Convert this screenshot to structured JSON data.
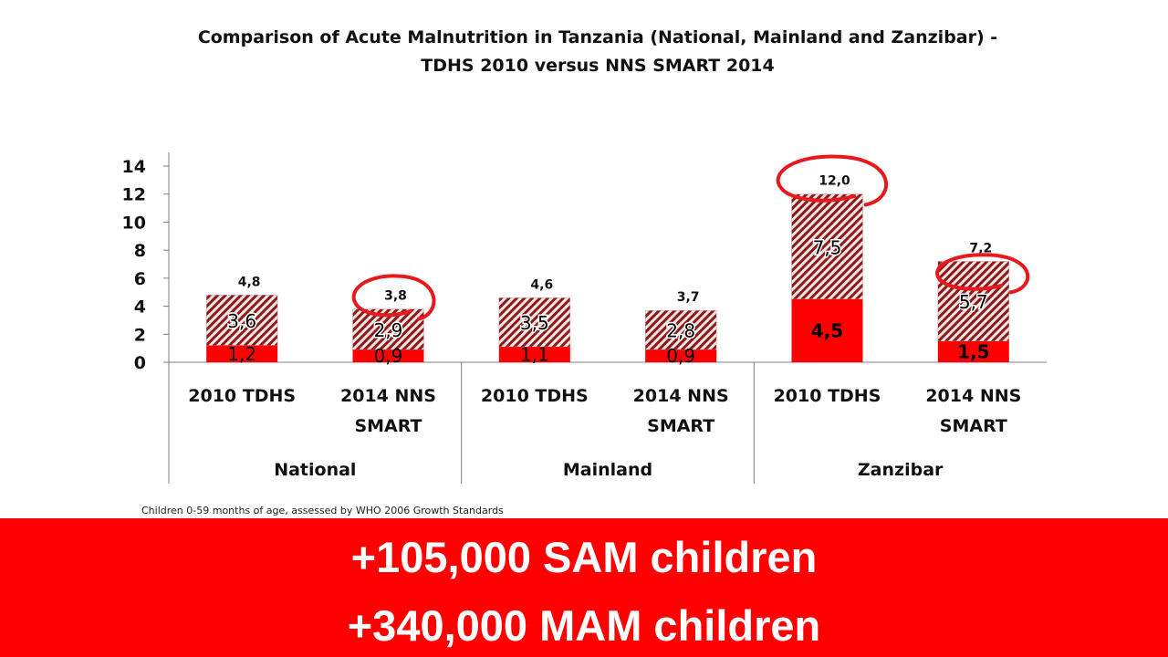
{
  "colors": {
    "sam": "#ff0000",
    "mam_hatch_dark": "#8b1a1a",
    "banner_bg": "#ff0000",
    "annotation": "#e8191c"
  },
  "banner": {
    "line1": "+105,000 SAM children",
    "line2": "+340,000 MAM children"
  },
  "footnote": "Children 0-59  months of age, assessed by WHO 2006  Growth Standards",
  "chart_data": {
    "type": "bar",
    "stacked": true,
    "title_lines": [
      "Comparison of Acute Malnutrition in Tanzania (National, Mainland and Zanzibar) -",
      "TDHS 2010 versus NNS SMART 2014"
    ],
    "ylim": [
      0,
      14
    ],
    "yticks": [
      "0",
      "2",
      "4",
      "6",
      "8",
      "10",
      "12",
      "14"
    ],
    "groups": [
      "National",
      "Mainland",
      "Zanzibar"
    ],
    "categories": [
      [
        "2010 TDHS"
      ],
      [
        "2014 NNS",
        "SMART"
      ],
      [
        "2010 TDHS"
      ],
      [
        "2014 NNS",
        "SMART"
      ],
      [
        "2010 TDHS"
      ],
      [
        "2014 NNS",
        "SMART"
      ]
    ],
    "series": [
      {
        "values": [
          1.2,
          0.9,
          1.1,
          0.9,
          4.5,
          1.5
        ],
        "labels": [
          "1,2",
          "0,9",
          "1,1",
          "0,9",
          "4,5",
          "1,5"
        ]
      },
      {
        "values": [
          3.6,
          2.9,
          3.5,
          2.8,
          7.5,
          5.7
        ],
        "labels": [
          "3,6",
          "2,9",
          "3,5",
          "2,8",
          "7,5",
          "5,7"
        ]
      }
    ],
    "totals": [
      4.8,
      3.8,
      4.6,
      3.7,
      12.0,
      7.2
    ],
    "total_labels": [
      "4,8",
      "3,8",
      "4,6",
      "3,7",
      "12,0",
      "7,2"
    ],
    "highlighted": [
      1,
      4,
      5
    ]
  }
}
